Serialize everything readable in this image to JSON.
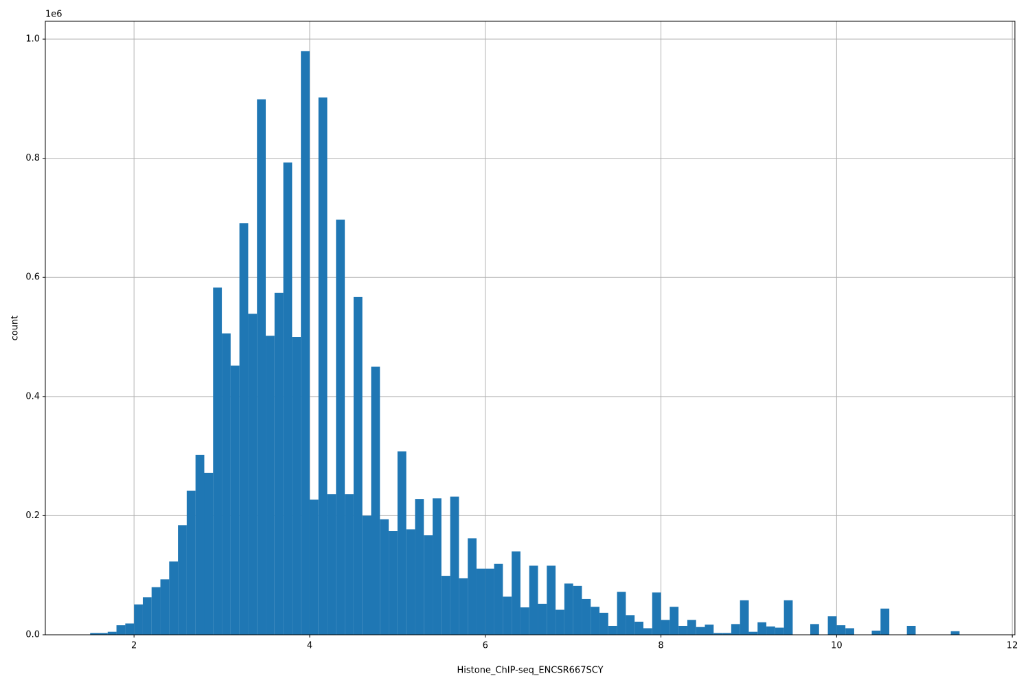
{
  "chart_data": {
    "type": "histogram",
    "xlabel": "Histone_ChIP-seq_ENCSR667SCY",
    "ylabel": "count",
    "yaxis_offset": "1e6",
    "color": "#1f77b4",
    "grid": true,
    "bins": [
      1.5,
      1.6,
      1.7,
      1.8,
      1.9,
      2.0,
      2.1,
      2.2,
      2.3,
      2.4,
      2.5,
      2.6,
      2.7,
      2.8,
      2.9,
      3.0,
      3.1,
      3.2,
      3.3,
      3.4,
      3.5,
      3.6,
      3.7,
      3.8,
      3.9,
      4.0,
      4.1,
      4.2,
      4.3,
      4.4,
      4.5,
      4.6,
      4.7,
      4.8,
      4.9,
      5.0,
      5.1,
      5.2,
      5.3,
      5.4,
      5.5,
      5.6,
      5.7,
      5.8,
      5.9,
      6.0,
      6.1,
      6.2,
      6.3,
      6.4,
      6.5,
      6.6,
      6.7,
      6.8,
      6.9,
      7.0,
      7.1,
      7.2,
      7.3,
      7.4,
      7.5,
      7.6,
      7.7,
      7.8,
      7.9,
      8.0,
      8.1,
      8.2,
      8.3,
      8.4,
      8.5,
      8.6,
      8.7,
      8.8,
      8.9,
      9.0,
      9.1,
      9.2,
      9.3,
      9.4,
      9.5,
      9.6,
      9.7,
      9.8,
      9.9,
      10.0,
      10.1,
      10.2,
      10.3,
      10.4,
      10.5,
      10.6,
      10.7,
      10.8,
      10.9,
      11.0,
      11.1,
      11.2,
      11.3,
      11.4,
      11.5
    ],
    "values": [
      3000,
      3000,
      5000,
      16000,
      19000,
      51000,
      63000,
      80000,
      93000,
      123000,
      184000,
      242000,
      302000,
      272000,
      583000,
      506000,
      452000,
      691000,
      539000,
      899000,
      502000,
      574000,
      793000,
      500000,
      980000,
      227000,
      902000,
      236000,
      697000,
      236000,
      567000,
      200000,
      450000,
      194000,
      174000,
      308000,
      177000,
      228000,
      167000,
      229000,
      99000,
      232000,
      95000,
      162000,
      111000,
      111000,
      119000,
      64000,
      140000,
      46000,
      116000,
      52000,
      116000,
      42000,
      86000,
      82000,
      60000,
      47000,
      37000,
      15000,
      72000,
      33000,
      22000,
      11000,
      71000,
      25000,
      47000,
      15000,
      25000,
      13000,
      17000,
      3000,
      3000,
      18000,
      58000,
      5000,
      21000,
      14000,
      12000,
      58000,
      0,
      0,
      18000,
      0,
      31000,
      16000,
      11000,
      0,
      0,
      7000,
      44000,
      0,
      0,
      15000,
      0,
      0,
      0,
      0,
      6000,
      0
    ],
    "xlim": [
      0.99,
      12.03
    ],
    "xticks": [
      2,
      4,
      6,
      8,
      10,
      12
    ],
    "ylim": [
      0,
      1030000
    ],
    "yticks": [
      {
        "value": 0,
        "label": "0.0"
      },
      {
        "value": 200000,
        "label": "0.2"
      },
      {
        "value": 400000,
        "label": "0.4"
      },
      {
        "value": 600000,
        "label": "0.6"
      },
      {
        "value": 800000,
        "label": "0.8"
      },
      {
        "value": 1000000,
        "label": "1.0"
      }
    ]
  }
}
